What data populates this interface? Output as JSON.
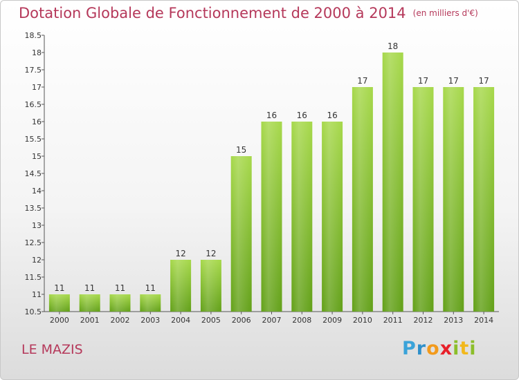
{
  "title": "Dotation Globale de Fonctionnement de 2000 à 2014",
  "unit": "(en milliers d'€)",
  "commune": "LE MAZIS",
  "logo": [
    "P",
    "r",
    "o",
    "x",
    "i",
    "t",
    "i"
  ],
  "colors": {
    "bar": "#7fbf2a",
    "bar_light": "#a6d84a",
    "title": "#b5385a",
    "axis": "#333333"
  },
  "chart_data": {
    "type": "bar",
    "title": "Dotation Globale de Fonctionnement de 2000 à 2014",
    "categories": [
      "2000",
      "2001",
      "2002",
      "2003",
      "2004",
      "2005",
      "2006",
      "2007",
      "2008",
      "2009",
      "2010",
      "2011",
      "2012",
      "2013",
      "2014"
    ],
    "values": [
      11,
      11,
      11,
      11,
      12,
      12,
      15,
      16,
      16,
      16,
      17,
      18,
      17,
      17,
      17
    ],
    "value_labels": [
      "11",
      "11",
      "11",
      "11",
      "12",
      "12",
      "15",
      "16",
      "16",
      "16",
      "17",
      "18",
      "17",
      "17",
      "17"
    ],
    "ylim": [
      10.5,
      18.5
    ],
    "yticks": [
      10.5,
      11,
      11.5,
      12,
      12.5,
      13,
      13.5,
      14,
      14.5,
      15,
      15.5,
      16,
      16.5,
      17,
      17.5,
      18,
      18.5
    ],
    "ytick_labels": [
      "10.5",
      "11",
      "11.5",
      "12",
      "12.5",
      "13",
      "13.5",
      "14",
      "14.5",
      "15",
      "15.5",
      "16",
      "16.5",
      "17",
      "17.5",
      "18",
      "18.5"
    ],
    "grid": false,
    "xlabel": "",
    "ylabel": ""
  }
}
